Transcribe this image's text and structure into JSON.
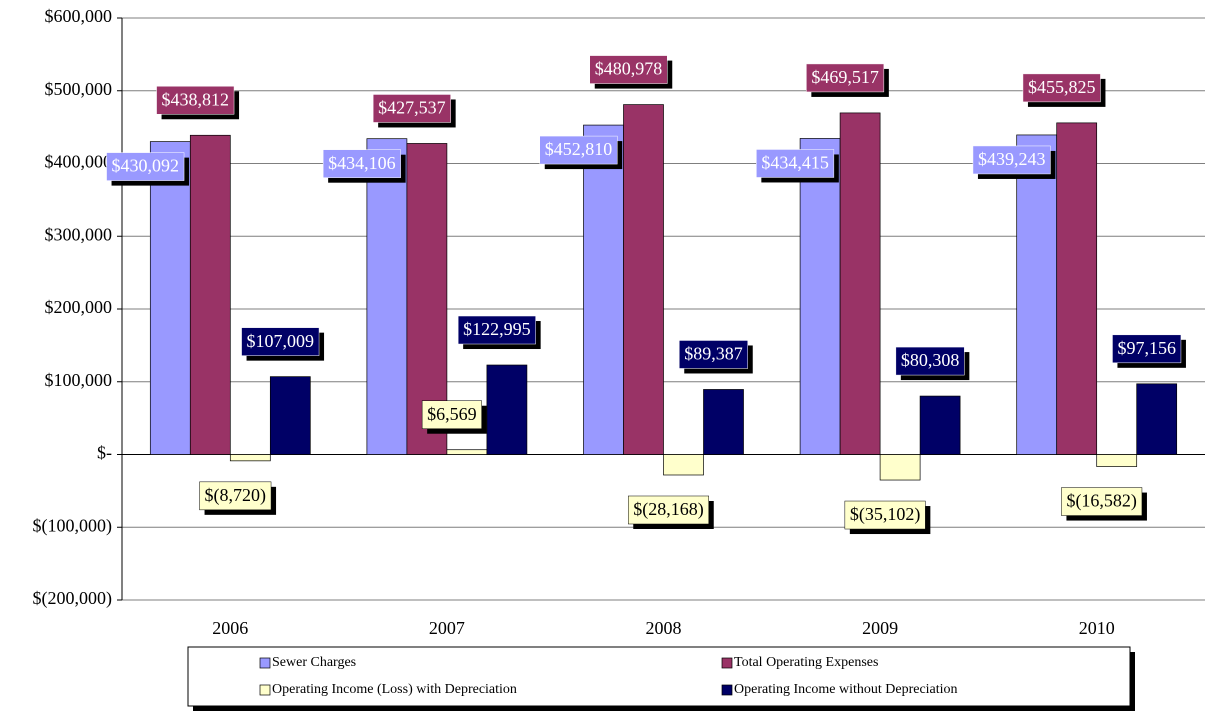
{
  "chart_data": {
    "type": "bar",
    "categories": [
      "2006",
      "2007",
      "2008",
      "2009",
      "2010"
    ],
    "series": [
      {
        "name": "Sewer Charges",
        "color": "#9999ff",
        "values": [
          430092,
          434106,
          452810,
          434415,
          439243
        ],
        "value_labels": [
          "$430,092",
          "$434,106",
          "$452,810",
          "$434,415",
          "$439,243"
        ]
      },
      {
        "name": "Total Operating Expenses",
        "color": "#993366",
        "values": [
          438812,
          427537,
          480978,
          469517,
          455825
        ],
        "value_labels": [
          "$438,812",
          "$427,537",
          "$480,978",
          "$469,517",
          "$455,825"
        ]
      },
      {
        "name": "Operating Income (Loss) with Depreciation",
        "color": "#ffffcc",
        "values": [
          -8720,
          6569,
          -28168,
          -35102,
          -16582
        ],
        "value_labels": [
          "$(8,720)",
          "$6,569",
          "$(28,168)",
          "$(35,102)",
          "$(16,582)"
        ]
      },
      {
        "name": "Operating Income without Depreciation",
        "color": "#000066",
        "values": [
          107009,
          122995,
          89387,
          80308,
          97156
        ],
        "value_labels": [
          "$107,009",
          "$122,995",
          "$89,387",
          "$80,308",
          "$97,156"
        ]
      }
    ],
    "ylim": [
      -200000,
      600000
    ],
    "yticks": [
      {
        "value": -200000,
        "label": "$(200,000)"
      },
      {
        "value": -100000,
        "label": "$(100,000)"
      },
      {
        "value": 0,
        "label": "$-"
      },
      {
        "value": 100000,
        "label": "$100,000"
      },
      {
        "value": 200000,
        "label": "$200,000"
      },
      {
        "value": 300000,
        "label": "$300,000"
      },
      {
        "value": 400000,
        "label": "$400,000"
      },
      {
        "value": 500000,
        "label": "$500,000"
      },
      {
        "value": 600000,
        "label": "$600,000"
      }
    ],
    "grid": true,
    "legend": "bottom"
  }
}
